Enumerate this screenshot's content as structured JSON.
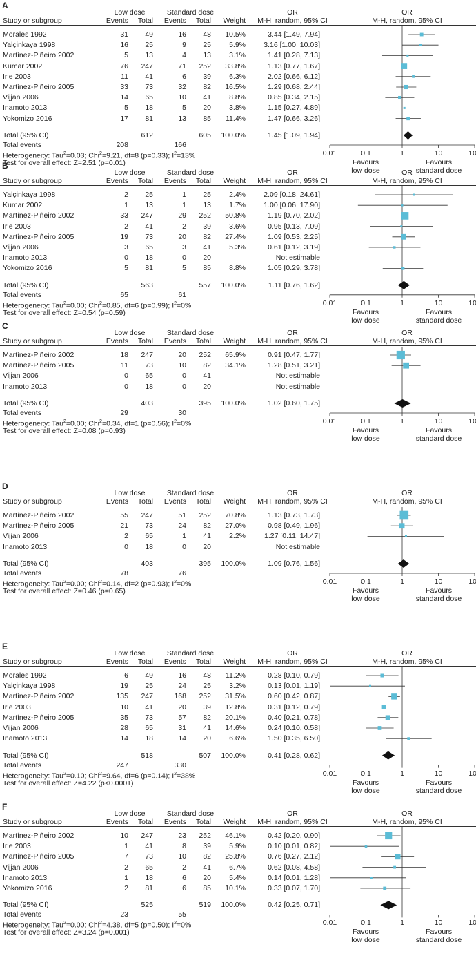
{
  "labels": {
    "study": "Study or subgroup",
    "low_dose": "Low dose",
    "standard_dose": "Standard dose",
    "events": "Events",
    "total": "Total",
    "weight": "Weight",
    "or": "OR",
    "method": "M-H, random, 95% CI",
    "total_ci": "Total (95% CI)",
    "total_events": "Total events",
    "favours_low": [
      "Favours",
      "low dose"
    ],
    "favours_standard": [
      "Favours",
      "standard dose"
    ]
  },
  "colors": {
    "square": "#5bbcd6",
    "diamond": "#111111",
    "line": "#333333"
  },
  "chart_data": [
    {
      "type": "forest",
      "panel": "A",
      "scale": "log",
      "xlim": [
        0.01,
        100
      ],
      "ticks": [
        "0.01",
        "0.1",
        "1",
        "10",
        "100"
      ],
      "studies": [
        {
          "name": "Morales 1992",
          "e1": "31",
          "n1": "49",
          "e2": "16",
          "n2": "48",
          "weight": "10.5%",
          "ci_text": "3.44 [1.49, 7.94]",
          "or": 3.44,
          "lo": 1.49,
          "hi": 7.94,
          "w": 10.5
        },
        {
          "name": "Yalçinkaya 1998",
          "e1": "16",
          "n1": "25",
          "e2": "9",
          "n2": "25",
          "weight": "5.9%",
          "ci_text": "3.16 [1.00, 10.03]",
          "or": 3.16,
          "lo": 1.0,
          "hi": 10.03,
          "w": 5.9
        },
        {
          "name": "Martínez-Piñeiro 2002",
          "e1": "5",
          "n1": "13",
          "e2": "4",
          "n2": "13",
          "weight": "3.1%",
          "ci_text": "1.41 [0.28, 7.13]",
          "or": 1.41,
          "lo": 0.28,
          "hi": 7.13,
          "w": 3.1
        },
        {
          "name": "Kumar 2002",
          "e1": "76",
          "n1": "247",
          "e2": "71",
          "n2": "252",
          "weight": "33.8%",
          "ci_text": "1.13 [0.77, 1.67]",
          "or": 1.13,
          "lo": 0.77,
          "hi": 1.67,
          "w": 33.8
        },
        {
          "name": "Irie 2003",
          "e1": "11",
          "n1": "41",
          "e2": "6",
          "n2": "39",
          "weight": "6.3%",
          "ci_text": "2.02 [0.66, 6.12]",
          "or": 2.02,
          "lo": 0.66,
          "hi": 6.12,
          "w": 6.3
        },
        {
          "name": "Martínez-Piñeiro 2005",
          "e1": "33",
          "n1": "73",
          "e2": "32",
          "n2": "82",
          "weight": "16.5%",
          "ci_text": "1.29 [0.68, 2.44]",
          "or": 1.29,
          "lo": 0.68,
          "hi": 2.44,
          "w": 16.5
        },
        {
          "name": "Vijjan 2006",
          "e1": "14",
          "n1": "65",
          "e2": "10",
          "n2": "41",
          "weight": "8.8%",
          "ci_text": "0.85 [0.34, 2.15]",
          "or": 0.85,
          "lo": 0.34,
          "hi": 2.15,
          "w": 8.8
        },
        {
          "name": "Inamoto 2013",
          "e1": "5",
          "n1": "18",
          "e2": "5",
          "n2": "20",
          "weight": "3.8%",
          "ci_text": "1.15 [0.27, 4.89]",
          "or": 1.15,
          "lo": 0.27,
          "hi": 4.89,
          "w": 3.8
        },
        {
          "name": "Yokomizo 2016",
          "e1": "17",
          "n1": "81",
          "e2": "13",
          "n2": "85",
          "weight": "11.4%",
          "ci_text": "1.47 [0.66, 3.26]",
          "or": 1.47,
          "lo": 0.66,
          "hi": 3.26,
          "w": 11.4
        }
      ],
      "total": {
        "n1": "612",
        "n2": "605",
        "weight": "100.0%",
        "ci_text": "1.45 [1.09, 1.94]",
        "or": 1.45,
        "lo": 1.09,
        "hi": 1.94
      },
      "total_events": {
        "e1": "208",
        "e2": "166"
      },
      "heterogeneity": {
        "prefix": "Heterogeneity: Tau",
        "tau": "=0.03; Chi",
        "chi": "=9.21, df=8 (p=0.33); I",
        "i2": "=13%"
      },
      "overall": "Test for overall effect: Z=2.51 (p=0.01)"
    },
    {
      "type": "forest",
      "panel": "B",
      "scale": "log",
      "xlim": [
        0.01,
        100
      ],
      "ticks": [
        "0.01",
        "0.1",
        "1",
        "10",
        "100"
      ],
      "studies": [
        {
          "name": "Yalçinkaya 1998",
          "e1": "2",
          "n1": "25",
          "e2": "1",
          "n2": "25",
          "weight": "2.4%",
          "ci_text": "2.09 [0.18, 24.61]",
          "or": 2.09,
          "lo": 0.18,
          "hi": 24.61,
          "w": 2.4
        },
        {
          "name": "Kumar 2002",
          "e1": "1",
          "n1": "13",
          "e2": "1",
          "n2": "13",
          "weight": "1.7%",
          "ci_text": "1.00 [0.06, 17.90]",
          "or": 1.0,
          "lo": 0.06,
          "hi": 17.9,
          "w": 1.7
        },
        {
          "name": "Martínez-Piñeiro 2002",
          "e1": "33",
          "n1": "247",
          "e2": "29",
          "n2": "252",
          "weight": "50.8%",
          "ci_text": "1.19 [0.70, 2.02]",
          "or": 1.19,
          "lo": 0.7,
          "hi": 2.02,
          "w": 50.8
        },
        {
          "name": "Irie 2003",
          "e1": "2",
          "n1": "41",
          "e2": "2",
          "n2": "39",
          "weight": "3.6%",
          "ci_text": "0.95 [0.13, 7.09]",
          "or": 0.95,
          "lo": 0.13,
          "hi": 7.09,
          "w": 3.6
        },
        {
          "name": "Martínez-Piñeiro 2005",
          "e1": "19",
          "n1": "73",
          "e2": "20",
          "n2": "82",
          "weight": "27.4%",
          "ci_text": "1.09 [0.53, 2.25]",
          "or": 1.09,
          "lo": 0.53,
          "hi": 2.25,
          "w": 27.4
        },
        {
          "name": "Vijjan 2006",
          "e1": "3",
          "n1": "65",
          "e2": "3",
          "n2": "41",
          "weight": "5.3%",
          "ci_text": "0.61 [0.12, 3.19]",
          "or": 0.61,
          "lo": 0.12,
          "hi": 3.19,
          "w": 5.3
        },
        {
          "name": "Inamoto 2013",
          "e1": "0",
          "n1": "18",
          "e2": "0",
          "n2": "20",
          "weight": "",
          "ci_text": "Not estimable",
          "or": null,
          "lo": null,
          "hi": null,
          "w": 0
        },
        {
          "name": "Yokomizo 2016",
          "e1": "5",
          "n1": "81",
          "e2": "5",
          "n2": "85",
          "weight": "8.8%",
          "ci_text": "1.05 [0.29, 3.78]",
          "or": 1.05,
          "lo": 0.29,
          "hi": 3.78,
          "w": 8.8
        }
      ],
      "total": {
        "n1": "563",
        "n2": "557",
        "weight": "100.0%",
        "ci_text": "1.11 [0.76, 1.62]",
        "or": 1.11,
        "lo": 0.76,
        "hi": 1.62
      },
      "total_events": {
        "e1": "65",
        "e2": "61"
      },
      "heterogeneity": {
        "prefix": "Heterogeneity: Tau",
        "tau": "=0.00; Chi",
        "chi": "=0.85, df=6 (p=0.99); I",
        "i2": "=0%"
      },
      "overall": "Test for overall effect: Z=0.54 (p=0.59)"
    },
    {
      "type": "forest",
      "panel": "C",
      "scale": "log",
      "xlim": [
        0.01,
        100
      ],
      "ticks": [
        "0.01",
        "0.1",
        "1",
        "10",
        "100"
      ],
      "studies": [
        {
          "name": "Martínez-Piñeiro 2002",
          "e1": "18",
          "n1": "247",
          "e2": "20",
          "n2": "252",
          "weight": "65.9%",
          "ci_text": "0.91 [0.47, 1.77]",
          "or": 0.91,
          "lo": 0.47,
          "hi": 1.77,
          "w": 65.9
        },
        {
          "name": "Martínez-Piñeiro 2005",
          "e1": "11",
          "n1": "73",
          "e2": "10",
          "n2": "82",
          "weight": "34.1%",
          "ci_text": "1.28 [0.51, 3.21]",
          "or": 1.28,
          "lo": 0.51,
          "hi": 3.21,
          "w": 34.1
        },
        {
          "name": "Vijjan 2006",
          "e1": "0",
          "n1": "65",
          "e2": "0",
          "n2": "41",
          "weight": "",
          "ci_text": "Not estimable",
          "or": null,
          "lo": null,
          "hi": null,
          "w": 0
        },
        {
          "name": "Inamoto 2013",
          "e1": "0",
          "n1": "18",
          "e2": "0",
          "n2": "20",
          "weight": "",
          "ci_text": "Not estimable",
          "or": null,
          "lo": null,
          "hi": null,
          "w": 0
        }
      ],
      "total": {
        "n1": "403",
        "n2": "395",
        "weight": "100.0%",
        "ci_text": "1.02 [0.60, 1.75]",
        "or": 1.02,
        "lo": 0.6,
        "hi": 1.75
      },
      "total_events": {
        "e1": "29",
        "e2": "30"
      },
      "heterogeneity": {
        "prefix": "Heterogeneity: Tau",
        "tau": "=0.00; Chi",
        "chi": "=0.34, df=1 (p=0.56); I",
        "i2": "=0%"
      },
      "overall": "Test for overall effect: Z=0.08 (p=0.93)"
    },
    {
      "type": "forest",
      "panel": "D",
      "scale": "log",
      "xlim": [
        0.01,
        100
      ],
      "ticks": [
        "0.01",
        "0.1",
        "1",
        "10",
        "100"
      ],
      "studies": [
        {
          "name": "Martínez-Piñeiro 2002",
          "e1": "55",
          "n1": "247",
          "e2": "51",
          "n2": "252",
          "weight": "70.8%",
          "ci_text": "1.13 [0.73, 1.73]",
          "or": 1.13,
          "lo": 0.73,
          "hi": 1.73,
          "w": 70.8
        },
        {
          "name": "Martínez-Piñeiro 2005",
          "e1": "21",
          "n1": "73",
          "e2": "24",
          "n2": "82",
          "weight": "27.0%",
          "ci_text": "0.98 [0.49, 1.96]",
          "or": 0.98,
          "lo": 0.49,
          "hi": 1.96,
          "w": 27.0
        },
        {
          "name": "Vijjan 2006",
          "e1": "2",
          "n1": "65",
          "e2": "1",
          "n2": "41",
          "weight": "2.2%",
          "ci_text": "1.27 [0.11, 14.47]",
          "or": 1.27,
          "lo": 0.11,
          "hi": 14.47,
          "w": 2.2
        },
        {
          "name": "Inamoto 2013",
          "e1": "0",
          "n1": "18",
          "e2": "0",
          "n2": "20",
          "weight": "",
          "ci_text": "Not estimable",
          "or": null,
          "lo": null,
          "hi": null,
          "w": 0
        }
      ],
      "total": {
        "n1": "403",
        "n2": "395",
        "weight": "100.0%",
        "ci_text": "1.09 [0.76, 1.56]",
        "or": 1.09,
        "lo": 0.76,
        "hi": 1.56
      },
      "total_events": {
        "e1": "78",
        "e2": "76"
      },
      "heterogeneity": {
        "prefix": "Heterogeneity: Tau",
        "tau": "=0.00; Chi",
        "chi": "=0.14, df=2 (p=0.93); I",
        "i2": "=0%"
      },
      "overall": "Test for overall effect: Z=0.46 (p=0.65)"
    },
    {
      "type": "forest",
      "panel": "E",
      "scale": "log",
      "xlim": [
        0.01,
        100
      ],
      "ticks": [
        "0.01",
        "0.1",
        "1",
        "10",
        "100"
      ],
      "studies": [
        {
          "name": "Morales 1992",
          "e1": "6",
          "n1": "49",
          "e2": "16",
          "n2": "48",
          "weight": "11.2%",
          "ci_text": "0.28 [0.10, 0.79]",
          "or": 0.28,
          "lo": 0.1,
          "hi": 0.79,
          "w": 11.2
        },
        {
          "name": "Yalçinkaya 1998",
          "e1": "19",
          "n1": "25",
          "e2": "24",
          "n2": "25",
          "weight": "3.2%",
          "ci_text": "0.13 [0.01, 1.19]",
          "or": 0.13,
          "lo": 0.01,
          "hi": 1.19,
          "w": 3.2
        },
        {
          "name": "Martínez-Piñeiro 2002",
          "e1": "135",
          "n1": "247",
          "e2": "168",
          "n2": "252",
          "weight": "31.5%",
          "ci_text": "0.60 [0.42, 0.87]",
          "or": 0.6,
          "lo": 0.42,
          "hi": 0.87,
          "w": 31.5
        },
        {
          "name": "Irie 2003",
          "e1": "10",
          "n1": "41",
          "e2": "20",
          "n2": "39",
          "weight": "12.8%",
          "ci_text": "0.31 [0.12, 0.79]",
          "or": 0.31,
          "lo": 0.12,
          "hi": 0.79,
          "w": 12.8
        },
        {
          "name": "Martínez-Piñeiro 2005",
          "e1": "35",
          "n1": "73",
          "e2": "57",
          "n2": "82",
          "weight": "20.1%",
          "ci_text": "0.40 [0.21, 0.78]",
          "or": 0.4,
          "lo": 0.21,
          "hi": 0.78,
          "w": 20.1
        },
        {
          "name": "Vijjan 2006",
          "e1": "28",
          "n1": "65",
          "e2": "31",
          "n2": "41",
          "weight": "14.6%",
          "ci_text": "0.24 [0.10, 0.58]",
          "or": 0.24,
          "lo": 0.1,
          "hi": 0.58,
          "w": 14.6
        },
        {
          "name": "Inamoto 2013",
          "e1": "14",
          "n1": "18",
          "e2": "14",
          "n2": "20",
          "weight": "6.6%",
          "ci_text": "1.50 [0.35, 6.50]",
          "or": 1.5,
          "lo": 0.35,
          "hi": 6.5,
          "w": 6.6
        }
      ],
      "total": {
        "n1": "518",
        "n2": "507",
        "weight": "100.0%",
        "ci_text": "0.41 [0.28, 0.62]",
        "or": 0.41,
        "lo": 0.28,
        "hi": 0.62
      },
      "total_events": {
        "e1": "247",
        "e2": "330"
      },
      "heterogeneity": {
        "prefix": "Heterogeneity: Tau",
        "tau": "=0.10; Chi",
        "chi": "=9.64, df=6 (p=0.14); I",
        "i2": "=38%"
      },
      "overall": "Test for overall effect: Z=4.22 (p<0.0001)"
    },
    {
      "type": "forest",
      "panel": "F",
      "scale": "log",
      "xlim": [
        0.01,
        100
      ],
      "ticks": [
        "0.01",
        "0.1",
        "1",
        "10",
        "100"
      ],
      "studies": [
        {
          "name": "Martínez-Piñeiro 2002",
          "e1": "10",
          "n1": "247",
          "e2": "23",
          "n2": "252",
          "weight": "46.1%",
          "ci_text": "0.42 [0.20, 0.90]",
          "or": 0.42,
          "lo": 0.2,
          "hi": 0.9,
          "w": 46.1
        },
        {
          "name": "Irie 2003",
          "e1": "1",
          "n1": "41",
          "e2": "8",
          "n2": "39",
          "weight": "5.9%",
          "ci_text": "0.10 [0.01, 0.82]",
          "or": 0.1,
          "lo": 0.01,
          "hi": 0.82,
          "w": 5.9
        },
        {
          "name": "Martínez-Piñeiro 2005",
          "e1": "7",
          "n1": "73",
          "e2": "10",
          "n2": "82",
          "weight": "25.8%",
          "ci_text": "0.76 [0.27, 2.12]",
          "or": 0.76,
          "lo": 0.27,
          "hi": 2.12,
          "w": 25.8
        },
        {
          "name": "Vijjan 2006",
          "e1": "2",
          "n1": "65",
          "e2": "2",
          "n2": "41",
          "weight": "6.7%",
          "ci_text": "0.62 [0.08, 4.58]",
          "or": 0.62,
          "lo": 0.08,
          "hi": 4.58,
          "w": 6.7
        },
        {
          "name": "Inamoto 2013",
          "e1": "1",
          "n1": "18",
          "e2": "6",
          "n2": "20",
          "weight": "5.4%",
          "ci_text": "0.14 [0.01, 1.28]",
          "or": 0.14,
          "lo": 0.01,
          "hi": 1.28,
          "w": 5.4
        },
        {
          "name": "Yokomizo 2016",
          "e1": "2",
          "n1": "81",
          "e2": "6",
          "n2": "85",
          "weight": "10.1%",
          "ci_text": "0.33 [0.07, 1.70]",
          "or": 0.33,
          "lo": 0.07,
          "hi": 1.7,
          "w": 10.1
        }
      ],
      "total": {
        "n1": "525",
        "n2": "519",
        "weight": "100.0%",
        "ci_text": "0.42 [0.25, 0.71]",
        "or": 0.42,
        "lo": 0.25,
        "hi": 0.71
      },
      "total_events": {
        "e1": "23",
        "e2": "55"
      },
      "heterogeneity": {
        "prefix": "Heterogeneity: Tau",
        "tau": "=0.00; Chi",
        "chi": "=4.38, df=5 (p=0.50); I",
        "i2": "=0%"
      },
      "overall": "Test for overall effect: Z=3.24 (p=0.001)"
    }
  ]
}
